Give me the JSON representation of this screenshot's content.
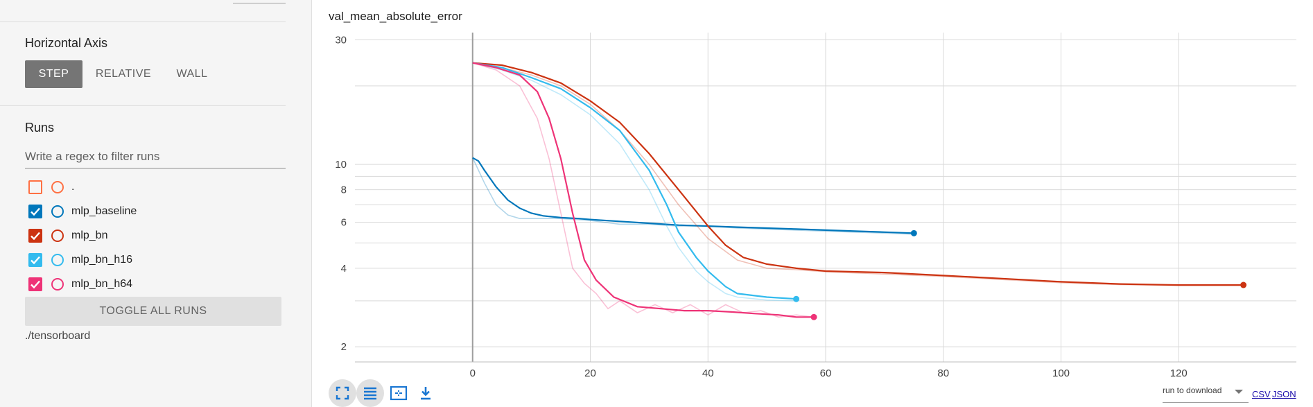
{
  "sidebar": {
    "horizontal_axis": {
      "title": "Horizontal Axis",
      "options": [
        "STEP",
        "RELATIVE",
        "WALL"
      ],
      "selected": "STEP"
    },
    "runs": {
      "title": "Runs",
      "filter_placeholder": "Write a regex to filter runs",
      "items": [
        {
          "label": ".",
          "checked": false,
          "color": "#ff7043"
        },
        {
          "label": "mlp_baseline",
          "checked": true,
          "color": "#0077bb"
        },
        {
          "label": "mlp_bn",
          "checked": true,
          "color": "#cc3311"
        },
        {
          "label": "mlp_bn_h16",
          "checked": true,
          "color": "#33bbee"
        },
        {
          "label": "mlp_bn_h64",
          "checked": true,
          "color": "#ee3377"
        }
      ],
      "toggle_all_label": "TOGGLE ALL RUNS",
      "logdir": "./tensorboard"
    }
  },
  "chart_card": {
    "title": "val_mean_absolute_error",
    "toolbar_icons": [
      "fullscreen-icon",
      "data-table-icon",
      "fit-domain-icon",
      "download-icon"
    ],
    "download_select_label": "run to download",
    "download_links": [
      "CSV",
      "JSON"
    ]
  },
  "chart_data": {
    "type": "line",
    "title": "val_mean_absolute_error",
    "xlabel": "",
    "ylabel": "",
    "y_scale": "log",
    "xlim": [
      -20,
      140
    ],
    "ylim": [
      1.75,
      32
    ],
    "x_ticks": [
      0,
      20,
      40,
      60,
      80,
      100,
      120
    ],
    "y_ticks_labeled": [
      2,
      4,
      6,
      8,
      10,
      30
    ],
    "y_grid": [
      2,
      3,
      4,
      5,
      6,
      7,
      8,
      9,
      10,
      20,
      30
    ],
    "grid": true,
    "legend": "none",
    "series": [
      {
        "name": "mlp_baseline",
        "color": "#0077bb",
        "smoothed": [
          [
            0,
            10.6
          ],
          [
            1,
            10.3
          ],
          [
            2,
            9.5
          ],
          [
            4,
            8.2
          ],
          [
            6,
            7.3
          ],
          [
            8,
            6.8
          ],
          [
            10,
            6.5
          ],
          [
            12,
            6.35
          ],
          [
            15,
            6.25
          ],
          [
            18,
            6.2
          ],
          [
            20,
            6.15
          ],
          [
            25,
            6.05
          ],
          [
            30,
            5.95
          ],
          [
            35,
            5.85
          ],
          [
            40,
            5.8
          ],
          [
            45,
            5.75
          ],
          [
            50,
            5.7
          ],
          [
            55,
            5.65
          ],
          [
            60,
            5.6
          ],
          [
            65,
            5.55
          ],
          [
            70,
            5.5
          ],
          [
            75,
            5.45
          ]
        ],
        "raw": [
          [
            0,
            10.6
          ],
          [
            2,
            8.5
          ],
          [
            4,
            7.0
          ],
          [
            6,
            6.4
          ],
          [
            8,
            6.2
          ],
          [
            10,
            6.2
          ],
          [
            15,
            6.2
          ],
          [
            20,
            6.1
          ],
          [
            25,
            5.9
          ],
          [
            30,
            5.9
          ],
          [
            35,
            5.8
          ],
          [
            40,
            5.8
          ],
          [
            45,
            5.7
          ],
          [
            50,
            5.65
          ],
          [
            55,
            5.6
          ],
          [
            60,
            5.55
          ],
          [
            65,
            5.5
          ],
          [
            70,
            5.45
          ],
          [
            75,
            5.4
          ]
        ]
      },
      {
        "name": "mlp_bn",
        "color": "#cc3311",
        "smoothed": [
          [
            0,
            24.5
          ],
          [
            5,
            24.0
          ],
          [
            10,
            22.5
          ],
          [
            15,
            20.5
          ],
          [
            20,
            17.5
          ],
          [
            25,
            14.5
          ],
          [
            30,
            11.0
          ],
          [
            35,
            8.0
          ],
          [
            40,
            5.8
          ],
          [
            43,
            4.9
          ],
          [
            46,
            4.4
          ],
          [
            50,
            4.15
          ],
          [
            55,
            4.0
          ],
          [
            60,
            3.9
          ],
          [
            70,
            3.85
          ],
          [
            80,
            3.75
          ],
          [
            90,
            3.65
          ],
          [
            100,
            3.55
          ],
          [
            110,
            3.48
          ],
          [
            120,
            3.45
          ],
          [
            131,
            3.45
          ]
        ],
        "raw": [
          [
            0,
            24.5
          ],
          [
            5,
            23.5
          ],
          [
            10,
            22.0
          ],
          [
            15,
            20.0
          ],
          [
            20,
            17.0
          ],
          [
            25,
            13.5
          ],
          [
            30,
            10.0
          ],
          [
            35,
            7.0
          ],
          [
            40,
            5.2
          ],
          [
            45,
            4.3
          ],
          [
            50,
            4.0
          ],
          [
            55,
            3.95
          ],
          [
            60,
            3.88
          ],
          [
            70,
            3.8
          ],
          [
            80,
            3.72
          ],
          [
            90,
            3.62
          ],
          [
            100,
            3.52
          ],
          [
            110,
            3.46
          ],
          [
            120,
            3.44
          ],
          [
            131,
            3.44
          ]
        ]
      },
      {
        "name": "mlp_bn_h16",
        "color": "#33bbee",
        "smoothed": [
          [
            0,
            24.5
          ],
          [
            5,
            23.5
          ],
          [
            10,
            21.5
          ],
          [
            15,
            19.5
          ],
          [
            20,
            16.5
          ],
          [
            25,
            13.5
          ],
          [
            30,
            9.5
          ],
          [
            33,
            7.0
          ],
          [
            35,
            5.5
          ],
          [
            38,
            4.4
          ],
          [
            40,
            3.9
          ],
          [
            43,
            3.4
          ],
          [
            45,
            3.2
          ],
          [
            50,
            3.1
          ],
          [
            55,
            3.05
          ]
        ],
        "raw": [
          [
            0,
            24.5
          ],
          [
            5,
            23.0
          ],
          [
            10,
            21.0
          ],
          [
            15,
            18.5
          ],
          [
            20,
            15.5
          ],
          [
            25,
            12.0
          ],
          [
            30,
            8.0
          ],
          [
            33,
            5.8
          ],
          [
            35,
            4.8
          ],
          [
            38,
            3.9
          ],
          [
            40,
            3.55
          ],
          [
            43,
            3.2
          ],
          [
            45,
            3.1
          ],
          [
            50,
            3.02
          ],
          [
            55,
            3.0
          ]
        ]
      },
      {
        "name": "mlp_bn_h64",
        "color": "#ee3377",
        "smoothed": [
          [
            0,
            24.5
          ],
          [
            4,
            23.5
          ],
          [
            8,
            22.0
          ],
          [
            11,
            19.0
          ],
          [
            13,
            15.0
          ],
          [
            15,
            10.5
          ],
          [
            17,
            6.5
          ],
          [
            19,
            4.3
          ],
          [
            21,
            3.6
          ],
          [
            24,
            3.1
          ],
          [
            28,
            2.85
          ],
          [
            32,
            2.8
          ],
          [
            36,
            2.75
          ],
          [
            40,
            2.75
          ],
          [
            44,
            2.72
          ],
          [
            48,
            2.68
          ],
          [
            52,
            2.65
          ],
          [
            55,
            2.6
          ],
          [
            58,
            2.6
          ]
        ],
        "raw": [
          [
            0,
            24.5
          ],
          [
            4,
            23.0
          ],
          [
            8,
            20.0
          ],
          [
            11,
            15.0
          ],
          [
            13,
            10.5
          ],
          [
            15,
            6.5
          ],
          [
            17,
            4.0
          ],
          [
            19,
            3.5
          ],
          [
            21,
            3.2
          ],
          [
            23,
            2.8
          ],
          [
            25,
            3.0
          ],
          [
            28,
            2.7
          ],
          [
            31,
            2.9
          ],
          [
            34,
            2.7
          ],
          [
            37,
            2.9
          ],
          [
            40,
            2.65
          ],
          [
            43,
            2.9
          ],
          [
            46,
            2.7
          ],
          [
            49,
            2.75
          ],
          [
            52,
            2.6
          ],
          [
            55,
            2.65
          ],
          [
            58,
            2.6
          ]
        ]
      }
    ]
  }
}
